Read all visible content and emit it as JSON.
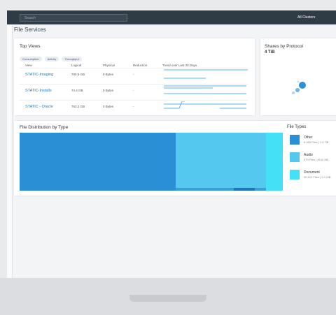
{
  "top_bar": {
    "search_placeholder": "Search",
    "cluster_selector": "All Clusters"
  },
  "page_title": "File Services",
  "top_views": {
    "title": "Top Views",
    "tabs": [
      "Consumption",
      "Activity",
      "Throughput"
    ],
    "columns": [
      "View",
      "Logical",
      "Physical",
      "Reduction",
      "Trend over Last 30 Days"
    ],
    "rows": [
      [
        "STATIC-Imaging",
        "780.5 GB",
        "0 Bytes",
        "-"
      ],
      [
        "STATIC-Installs",
        "74.4 GB",
        "0 Bytes",
        "-"
      ],
      [
        "STATIC - Oracle",
        "763.2 GB",
        "0 Bytes",
        "-"
      ]
    ]
  },
  "shares_by_protocol": {
    "title": "Shares by Protocol",
    "total": "4 TiB"
  },
  "file_distribution": {
    "title": "File Distribution by Type"
  },
  "file_types": {
    "title": "File Types",
    "items": [
      {
        "name": "Other",
        "detail": "6,450 Files | 1.4 TiB"
      },
      {
        "name": "Audio",
        "detail": "570 Files | 80.8 GiB"
      },
      {
        "name": "Document",
        "detail": "30,122 Files | 1.9 GiB"
      }
    ]
  }
}
